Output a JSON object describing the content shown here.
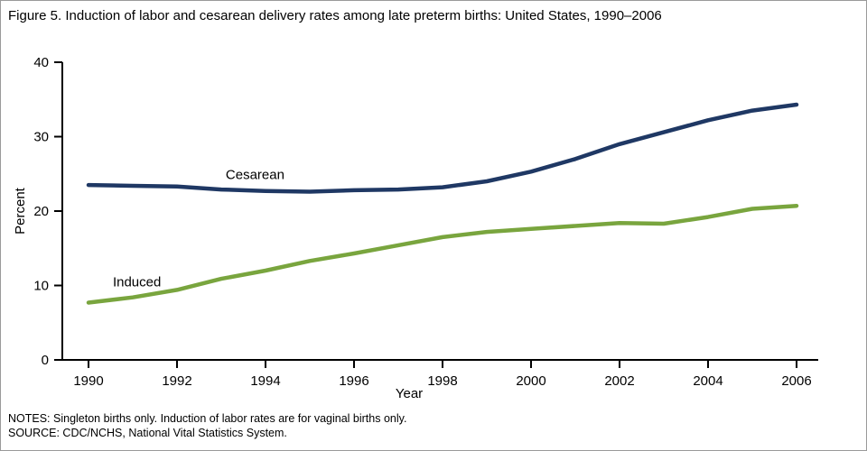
{
  "figure": {
    "title": "Figure 5. Induction of labor and cesarean delivery rates among late preterm births: United States, 1990–2006",
    "notes": "NOTES: Singleton births only. Induction of labor rates are for vaginal births only.",
    "source": "SOURCE: CDC/NCHS, National Vital Statistics System."
  },
  "chart_data": {
    "type": "line",
    "x": [
      1990,
      1991,
      1992,
      1993,
      1994,
      1995,
      1996,
      1997,
      1998,
      1999,
      2000,
      2001,
      2002,
      2003,
      2004,
      2005,
      2006
    ],
    "series": [
      {
        "name": "Cesarean",
        "color": "#1f3864",
        "values": [
          23.5,
          23.4,
          23.3,
          22.9,
          22.7,
          22.6,
          22.8,
          22.9,
          23.2,
          24.0,
          25.3,
          27.0,
          29.0,
          30.6,
          32.2,
          33.5,
          34.3
        ],
        "label_pos": {
          "x": 1993.1,
          "y": 24.9
        }
      },
      {
        "name": "Induced",
        "color": "#79a53e",
        "values": [
          7.7,
          8.4,
          9.4,
          10.9,
          12.0,
          13.3,
          14.3,
          15.4,
          16.5,
          17.2,
          17.6,
          18.0,
          18.4,
          18.3,
          19.2,
          20.3,
          20.7
        ],
        "label_pos": {
          "x": 1990.55,
          "y": 10.5
        }
      }
    ],
    "xlabel": "Year",
    "ylabel": "Percent",
    "xlim": [
      1990,
      2006
    ],
    "ylim": [
      0,
      40
    ],
    "xticks": [
      1990,
      1992,
      1994,
      1996,
      1998,
      2000,
      2002,
      2004,
      2006
    ],
    "yticks": [
      0,
      10,
      20,
      30,
      40
    ],
    "grid": false,
    "legend": "inline-labels",
    "axis_color": "#000000"
  }
}
